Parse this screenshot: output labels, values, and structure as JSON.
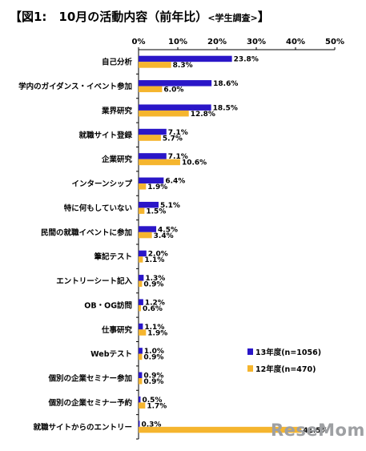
{
  "title": {
    "main": "【図1:　10月の活動内容（前年比）",
    "sub": "<学生調査>",
    "end": "】"
  },
  "watermark": "ReseMom",
  "chart_data": {
    "type": "bar",
    "orientation": "horizontal",
    "xlim": [
      0,
      50
    ],
    "ticks": [
      "0%",
      "10%",
      "20%",
      "30%",
      "40%",
      "50%"
    ],
    "tick_values": [
      0,
      10,
      20,
      30,
      40,
      50
    ],
    "grid": false,
    "legend_position": "bottom-right",
    "categories": [
      "自己分析",
      "学内のガイダンス・イベント参加",
      "業界研究",
      "就職サイト登録",
      "企業研究",
      "インターンシップ",
      "特に何もしていない",
      "民間の就職イベントに参加",
      "筆記テスト",
      "エントリーシート記入",
      "OB・OG訪問",
      "仕事研究",
      "Webテスト",
      "個別の企業セミナー参加",
      "個別の企業セミナー予約",
      "就職サイトからのエントリー"
    ],
    "series": [
      {
        "name": "13年度(n=1056)",
        "color": "#2a16c8",
        "values": [
          23.8,
          18.6,
          18.5,
          7.1,
          7.1,
          6.4,
          5.1,
          4.5,
          2.0,
          1.3,
          1.2,
          1.1,
          1.0,
          0.9,
          0.5,
          0.3
        ],
        "labels": [
          "23.8%",
          "18.6%",
          "18.5%",
          "7.1%",
          "7.1%",
          "6.4%",
          "5.1%",
          "4.5%",
          "2.0%",
          "1.3%",
          "1.2%",
          "1.1%",
          "1.0%",
          "0.9%",
          "0.5%",
          "0.3%"
        ]
      },
      {
        "name": "12年度(n=470)",
        "color": "#f5b52e",
        "values": [
          8.3,
          6.0,
          12.8,
          5.7,
          10.6,
          1.9,
          1.5,
          3.4,
          1.1,
          0.9,
          0.6,
          1.9,
          0.9,
          0.9,
          1.7,
          41.5
        ],
        "labels": [
          "8.3%",
          "6.0%",
          "12.8%",
          "5.7%",
          "10.6%",
          "1.9%",
          "1.5%",
          "3.4%",
          "1.1%",
          "0.9%",
          "0.6%",
          "1.9%",
          "0.9%",
          "0.9%",
          "1.7%",
          "41.5%"
        ]
      }
    ]
  }
}
